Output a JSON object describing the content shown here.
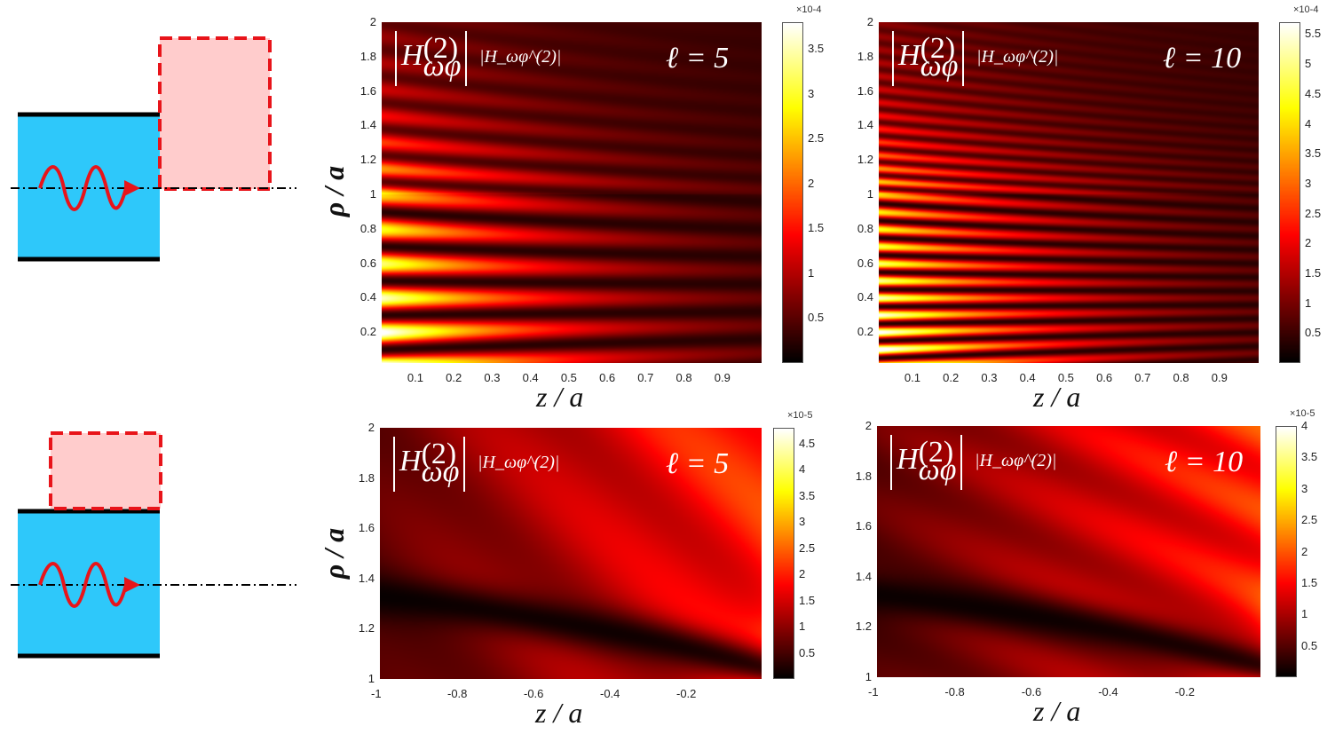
{
  "diagrams": [
    {
      "name": "top-schematic",
      "cavity_color": "#2ec8fa",
      "region_color": "#ffcccc",
      "region_border": "#e8141a",
      "wave_color": "#e8141a"
    },
    {
      "name": "bottom-schematic",
      "cavity_color": "#2ec8fa",
      "region_color": "#ffcccc",
      "region_border": "#e8141a",
      "wave_color": "#e8141a"
    }
  ],
  "chart_data": [
    {
      "type": "heatmap",
      "quantity_label": "|H_ωφ^(2)|",
      "annotation": "ℓ = 5",
      "xlabel": "z / a",
      "ylabel": "ρ / a",
      "xlim": [
        0.01,
        1
      ],
      "ylim": [
        0.02,
        2
      ],
      "xticks": [
        "0.1",
        "0.2",
        "0.3",
        "0.4",
        "0.5",
        "0.6",
        "0.7",
        "0.8",
        "0.9"
      ],
      "yticks": [
        "0.2",
        "0.4",
        "0.6",
        "0.8",
        "1",
        "1.2",
        "1.4",
        "1.6",
        "1.8",
        "2"
      ],
      "colormap": "hot",
      "colorbar_exponent": "×10-4",
      "colorbar_range": [
        0,
        3.8
      ],
      "colorbar_ticks": [
        "0.5",
        "1",
        "1.5",
        "2",
        "2.5",
        "3",
        "3.5"
      ],
      "pattern": "bands-below-rho1",
      "lobes": 5
    },
    {
      "type": "heatmap",
      "quantity_label": "|H_ωφ^(2)|",
      "annotation": "ℓ = 10",
      "xlabel": "z / a",
      "ylabel": "",
      "xlim": [
        0.01,
        1
      ],
      "ylim": [
        0.02,
        2
      ],
      "xticks": [
        "0.1",
        "0.2",
        "0.3",
        "0.4",
        "0.5",
        "0.6",
        "0.7",
        "0.8",
        "0.9"
      ],
      "yticks": [
        "0.2",
        "0.4",
        "0.6",
        "0.8",
        "1",
        "1.2",
        "1.4",
        "1.6",
        "1.8",
        "2"
      ],
      "colormap": "hot",
      "colorbar_exponent": "×10-4",
      "colorbar_range": [
        0,
        5.7
      ],
      "colorbar_ticks": [
        "0.5",
        "1",
        "1.5",
        "2",
        "2.5",
        "3",
        "3.5",
        "4",
        "4.5",
        "5",
        "5.5"
      ],
      "pattern": "bands-below-rho1",
      "lobes": 10
    },
    {
      "type": "heatmap",
      "quantity_label": "|H_ωφ^(2)|",
      "annotation": "ℓ = 5",
      "xlabel": "z / a",
      "ylabel": "ρ / a",
      "xlim": [
        -1,
        0
      ],
      "ylim": [
        1,
        2
      ],
      "xticks": [
        "-1",
        "-0.8",
        "-0.6",
        "-0.4",
        "-0.2"
      ],
      "yticks": [
        "1",
        "1.2",
        "1.4",
        "1.6",
        "1.8",
        "2"
      ],
      "colormap": "hot",
      "colorbar_exponent": "×10-5",
      "colorbar_range": [
        0,
        4.8
      ],
      "colorbar_ticks": [
        "0.5",
        "1",
        "1.5",
        "2",
        "2.5",
        "3",
        "3.5",
        "4",
        "4.5"
      ],
      "pattern": "outer",
      "lobes": 5
    },
    {
      "type": "heatmap",
      "quantity_label": "|H_ωφ^(2)|",
      "annotation": "ℓ = 10",
      "xlabel": "z / a",
      "ylabel": "",
      "xlim": [
        -1,
        0
      ],
      "ylim": [
        1,
        2
      ],
      "xticks": [
        "-1",
        "-0.8",
        "-0.6",
        "-0.4",
        "-0.2"
      ],
      "yticks": [
        "1",
        "1.2",
        "1.4",
        "1.6",
        "1.8",
        "2"
      ],
      "colormap": "hot",
      "colorbar_exponent": "×10-5",
      "colorbar_range": [
        0,
        4
      ],
      "colorbar_ticks": [
        "0.5",
        "1",
        "1.5",
        "2",
        "2.5",
        "3",
        "3.5",
        "4"
      ],
      "pattern": "outer",
      "lobes": 10
    }
  ],
  "labels": {
    "H": "H",
    "sup": "(2)",
    "sub": "ωφ"
  }
}
